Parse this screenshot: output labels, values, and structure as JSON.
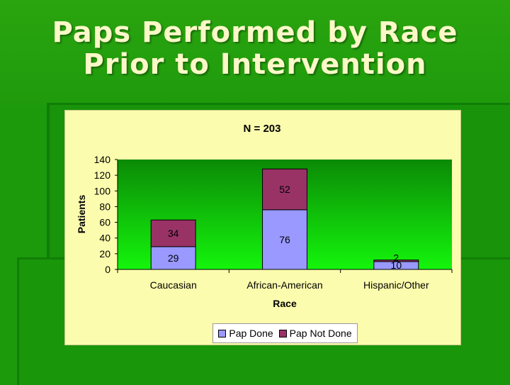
{
  "slide": {
    "title_line1": "Paps Performed by Race",
    "title_line2": "Prior to Intervention"
  },
  "chart_data": {
    "type": "bar",
    "stacked": true,
    "title": "N = 203",
    "xlabel": "Race",
    "ylabel": "Patients",
    "categories": [
      "Caucasian",
      "African-American",
      "Hispanic/Other"
    ],
    "series": [
      {
        "name": "Pap Done",
        "values": [
          29,
          76,
          10
        ],
        "color": "#9999ff"
      },
      {
        "name": "Pap Not Done",
        "values": [
          34,
          52,
          2
        ],
        "color": "#993366"
      }
    ],
    "ylim": [
      0,
      140
    ],
    "yticks": [
      0,
      20,
      40,
      60,
      80,
      100,
      120,
      140
    ],
    "grid": false,
    "legend": "bottom",
    "plot_background": "gradient dark green to bright green"
  }
}
